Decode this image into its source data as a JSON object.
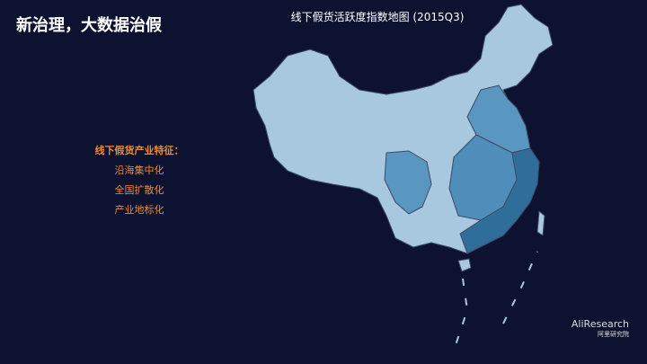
{
  "header": {
    "title": "新治理，大数据治假"
  },
  "map": {
    "title": "线下假货活跃度指数地图 (2015Q3)"
  },
  "features": {
    "heading": "线下假货产业特征：",
    "items": [
      "沿海集中化",
      "全国扩散化",
      "产业地标化"
    ]
  },
  "logo": {
    "en": "AliResearch",
    "cn": "阿里研究院"
  }
}
